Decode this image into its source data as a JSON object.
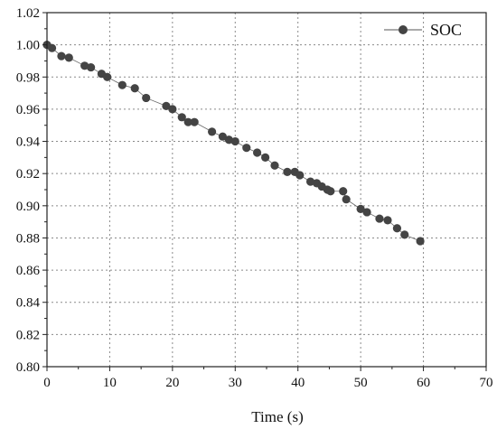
{
  "chart_data": {
    "type": "line",
    "xlabel": "Time (s)",
    "ylabel": "",
    "xlim": [
      0,
      70
    ],
    "ylim": [
      0.8,
      1.02
    ],
    "xticks": [
      "0",
      "10",
      "20",
      "30",
      "40",
      "50",
      "60",
      "70"
    ],
    "yticks": [
      "0.80",
      "0.82",
      "0.84",
      "0.86",
      "0.88",
      "0.90",
      "0.92",
      "0.94",
      "0.96",
      "0.98",
      "1.00",
      "1.02"
    ],
    "grid": true,
    "legend": {
      "position": "top-right",
      "entries": [
        "SOC"
      ]
    },
    "series": [
      {
        "name": "SOC",
        "color": "#444444",
        "marker": "circle",
        "x": [
          0,
          0.8,
          2.3,
          3.5,
          6.0,
          7.0,
          8.7,
          9.6,
          12.0,
          14.0,
          15.8,
          19.0,
          20.0,
          21.5,
          22.5,
          23.5,
          26.3,
          28.0,
          29.0,
          30.0,
          31.8,
          33.5,
          34.8,
          36.3,
          38.3,
          39.5,
          40.3,
          42.0,
          43.0,
          43.8,
          44.7,
          45.2,
          47.2,
          47.7,
          50.0,
          51.0,
          53.0,
          54.3,
          55.8,
          57.0,
          59.5
        ],
        "y": [
          1.0,
          0.998,
          0.993,
          0.992,
          0.987,
          0.986,
          0.982,
          0.98,
          0.975,
          0.973,
          0.967,
          0.962,
          0.96,
          0.955,
          0.952,
          0.952,
          0.946,
          0.943,
          0.941,
          0.94,
          0.936,
          0.933,
          0.93,
          0.925,
          0.921,
          0.921,
          0.919,
          0.915,
          0.914,
          0.912,
          0.91,
          0.909,
          0.909,
          0.904,
          0.898,
          0.896,
          0.892,
          0.891,
          0.886,
          0.882,
          0.878
        ]
      }
    ]
  }
}
